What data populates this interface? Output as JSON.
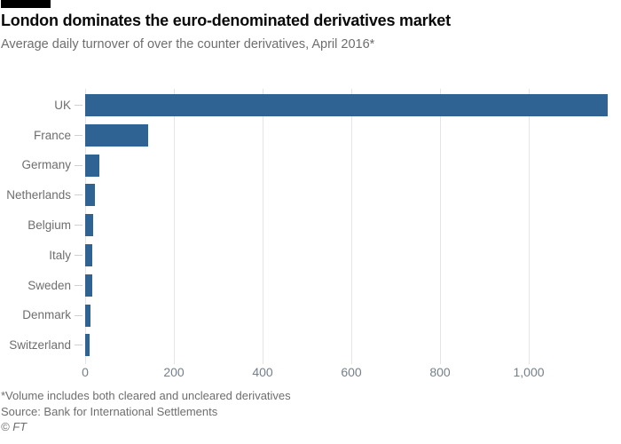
{
  "header": {
    "title": "London dominates the euro-denominated derivatives market",
    "subtitle": "Average daily turnover of over the counter derivatives, April 2016*"
  },
  "chart_data": {
    "type": "bar",
    "orientation": "horizontal",
    "title": "London dominates the euro-denominated derivatives market",
    "subtitle": "Average daily turnover of over the counter derivatives, April 2016*",
    "categories": [
      "UK",
      "France",
      "Germany",
      "Netherlands",
      "Belgium",
      "Italy",
      "Sweden",
      "Denmark",
      "Switzerland"
    ],
    "values": [
      1177,
      141,
      31,
      22,
      18,
      15,
      15,
      11,
      9
    ],
    "xlabel": "",
    "ylabel": "",
    "xlim": [
      0,
      1208
    ],
    "xticks": [
      0,
      200,
      400,
      600,
      800,
      1000
    ],
    "xtick_labels": [
      "0",
      "200",
      "400",
      "600",
      "800",
      "1,000"
    ],
    "grid": "vertical",
    "legend": "none",
    "bar_color": "#2f6394"
  },
  "footer": {
    "footnote": "*Volume includes both cleared and uncleared derivatives",
    "source": "Source: Bank for International Settlements",
    "credit": "© FT"
  },
  "colors": {
    "bar": "#2f6394",
    "gridline": "#e4e4e4",
    "axis_text": "#75808a",
    "label_text": "#6e6e6e",
    "title_text": "#0a0a0a",
    "top_rule": "#000000"
  }
}
